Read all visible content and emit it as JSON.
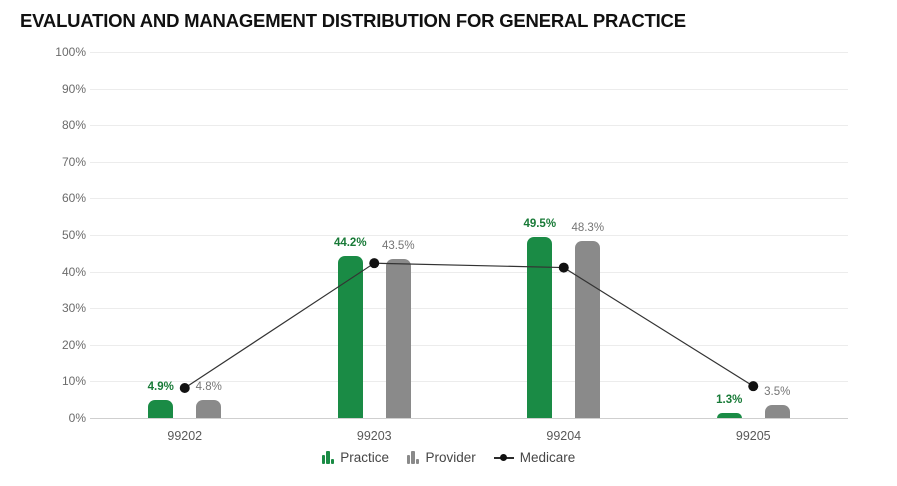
{
  "page": {
    "title": "EVALUATION AND MANAGEMENT DISTRIBUTION FOR GENERAL PRACTICE"
  },
  "colors": {
    "practice_bar": "#1a8b45",
    "practice_label": "#187a37",
    "provider_bar": "#8a8a8a",
    "provider_label": "#757575",
    "medicare_line": "#333333",
    "medicare_dot": "#111111"
  },
  "chart_data": {
    "type": "bar",
    "title": "EVALUATION AND MANAGEMENT DISTRIBUTION FOR GENERAL PRACTICE",
    "categories": [
      "99202",
      "99203",
      "99204",
      "99205"
    ],
    "series": [
      {
        "name": "Practice",
        "type": "bar",
        "color_key": "practice_bar",
        "label_color_key": "practice_label",
        "values": [
          4.9,
          44.2,
          49.5,
          1.3
        ],
        "labels": [
          "4.9%",
          "44.2%",
          "49.5%",
          "1.3%"
        ]
      },
      {
        "name": "Provider",
        "type": "bar",
        "color_key": "provider_bar",
        "label_color_key": "provider_label",
        "values": [
          4.8,
          43.5,
          48.3,
          3.5
        ],
        "labels": [
          "4.8%",
          "43.5%",
          "48.3%",
          "3.5%"
        ]
      },
      {
        "name": "Medicare",
        "type": "line",
        "color_key": "medicare_line",
        "values": [
          8.2,
          42.3,
          41.1,
          8.7
        ]
      }
    ],
    "xlabel": "",
    "ylabel": "",
    "ylim": [
      0,
      100
    ],
    "ytick_step": 10,
    "ytick_labels": [
      "0%",
      "10%",
      "20%",
      "30%",
      "40%",
      "50%",
      "60%",
      "70%",
      "80%",
      "90%",
      "100%"
    ],
    "grid": true,
    "legend_position": "bottom",
    "legend": [
      {
        "label": "Practice",
        "icon": "bar-chart-icon"
      },
      {
        "label": "Provider",
        "icon": "bar-chart-icon"
      },
      {
        "label": "Medicare",
        "icon": "line-dot-icon"
      }
    ]
  }
}
